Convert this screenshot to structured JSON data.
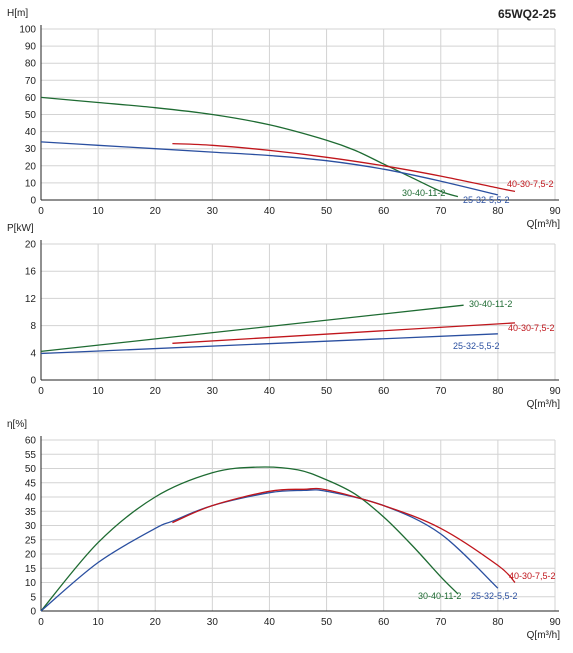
{
  "page": {
    "model": "65WQ2-25"
  },
  "colors": {
    "green": "#1e6b32",
    "blue": "#2a4fa0",
    "red": "#c0161c",
    "grid": "#d3d3d3",
    "axis": "#222222"
  },
  "chart_data": [
    {
      "type": "line",
      "ylabel": "H[m]",
      "xlabel": "Q[m³/h]",
      "xlim": [
        0,
        90
      ],
      "ylim": [
        0,
        100
      ],
      "xticks": [
        0,
        10,
        20,
        30,
        40,
        50,
        60,
        70,
        80,
        90
      ],
      "yticks": [
        0,
        10,
        20,
        30,
        40,
        50,
        60,
        70,
        80,
        90,
        100
      ],
      "grid": true,
      "series": [
        {
          "name": "30-40-11-2",
          "color": "green",
          "x": [
            0,
            10,
            20,
            30,
            40,
            50,
            55,
            60,
            65,
            70,
            73
          ],
          "y": [
            60,
            57,
            54,
            50,
            44,
            35,
            29,
            21,
            13,
            5,
            2
          ]
        },
        {
          "name": "25-32-5,5-2",
          "color": "blue",
          "x": [
            0,
            10,
            20,
            30,
            40,
            50,
            60,
            70,
            80
          ],
          "y": [
            34,
            32,
            30,
            28,
            26,
            23,
            18,
            11,
            3
          ]
        },
        {
          "name": "40-30-7,5-2",
          "color": "red",
          "x": [
            23,
            30,
            40,
            50,
            60,
            70,
            80,
            83
          ],
          "y": [
            33,
            32,
            29,
            25,
            20,
            14,
            7,
            5
          ]
        }
      ]
    },
    {
      "type": "line",
      "ylabel": "P[kW]",
      "xlabel": "Q[m³/h]",
      "xlim": [
        0,
        90
      ],
      "ylim": [
        0,
        20
      ],
      "xticks": [
        0,
        10,
        20,
        30,
        40,
        50,
        60,
        70,
        80,
        90
      ],
      "yticks": [
        0,
        4,
        8,
        12,
        16,
        20
      ],
      "grid": true,
      "series": [
        {
          "name": "30-40-11-2",
          "color": "green",
          "x": [
            0,
            74
          ],
          "y": [
            4.2,
            11.0
          ]
        },
        {
          "name": "25-32-5,5-2",
          "color": "blue",
          "x": [
            0,
            80
          ],
          "y": [
            3.9,
            6.8
          ]
        },
        {
          "name": "40-30-7,5-2",
          "color": "red",
          "x": [
            23,
            83
          ],
          "y": [
            5.4,
            8.4
          ]
        }
      ]
    },
    {
      "type": "line",
      "ylabel": "η[%]",
      "xlabel": "Q[m³/h]",
      "xlim": [
        0,
        90
      ],
      "ylim": [
        0,
        60
      ],
      "xticks": [
        0,
        10,
        20,
        30,
        40,
        50,
        60,
        70,
        80,
        90
      ],
      "yticks": [
        0,
        5,
        10,
        15,
        20,
        25,
        30,
        35,
        40,
        45,
        50,
        55,
        60
      ],
      "grid": true,
      "series": [
        {
          "name": "30-40-11-2",
          "color": "green",
          "x": [
            0,
            10,
            20,
            30,
            38,
            45,
            50,
            55,
            60,
            65,
            70,
            73
          ],
          "y": [
            0,
            24,
            40,
            48.5,
            50.5,
            49.5,
            46,
            41,
            33,
            23,
            12,
            6
          ]
        },
        {
          "name": "25-32-5,5-2",
          "color": "blue",
          "x": [
            0,
            10,
            20,
            23,
            30,
            40,
            46,
            50,
            60,
            70,
            80
          ],
          "y": [
            0,
            17,
            29,
            31.5,
            37,
            41.5,
            42.3,
            42,
            37,
            27,
            8
          ]
        },
        {
          "name": "40-30-7,5-2",
          "color": "red",
          "x": [
            23,
            30,
            40,
            46,
            50,
            60,
            70,
            80,
            83
          ],
          "y": [
            31,
            37,
            42,
            42.7,
            42.5,
            37,
            29,
            16,
            10
          ]
        }
      ]
    }
  ]
}
